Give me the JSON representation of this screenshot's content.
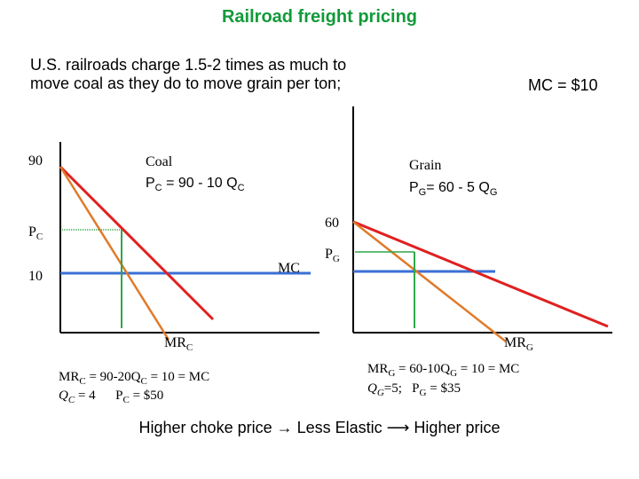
{
  "title": "Railroad freight pricing",
  "intro": "U.S. railroads charge 1.5-2 times as much to move coal as they do to move grain per ton;",
  "mc_note": "MC = $10",
  "coal": {
    "name": "Coal",
    "demand_eq": {
      "p": "P",
      "p_sub": "C",
      "rest": " = 90 - 10 Q",
      "q_sub": "C"
    },
    "tick_90": "90",
    "tick_pc": {
      "base": "P",
      "sub": "C"
    },
    "tick_10": "10",
    "mc_label": "MC",
    "mr_label": {
      "base": "MR",
      "sub": "C"
    },
    "solution_line1": {
      "a": "MR",
      "a_sub": "C",
      "b": " = 90-20Q",
      "b_sub": "C",
      "c": " = 10 = MC"
    },
    "solution_line2": {
      "a": "Q",
      "a_sub": "C",
      "b": " = 4      P",
      "b_sub": "C",
      "c": " = $50"
    }
  },
  "grain": {
    "name": "Grain",
    "demand_eq": {
      "p": "P",
      "p_sub": "G",
      "rest": "= 60 - 5 Q",
      "q_sub": "G"
    },
    "tick_60": "60",
    "tick_pg": {
      "base": "P",
      "sub": "G"
    },
    "mr_label": {
      "base": "MR",
      "sub": "G"
    },
    "solution_line1": {
      "a": "MR",
      "a_sub": "G",
      "b": " = 60-10Q",
      "b_sub": "G",
      "c": " = 10 = MC"
    },
    "solution_line2": {
      "a": "Q",
      "a_sub": "G",
      "b": "=5;   P",
      "b_sub": "G",
      "c": " = $35"
    }
  },
  "conclusion": "Higher choke price → Less Elastic ⟶ Higher price",
  "colors": {
    "title": "#129a3a",
    "demand": "#e02020",
    "marginal_revenue": "#e07a2a",
    "marginal_cost": "#3a6fd6",
    "guide": "#2fa84a",
    "axis": "#000000"
  }
}
